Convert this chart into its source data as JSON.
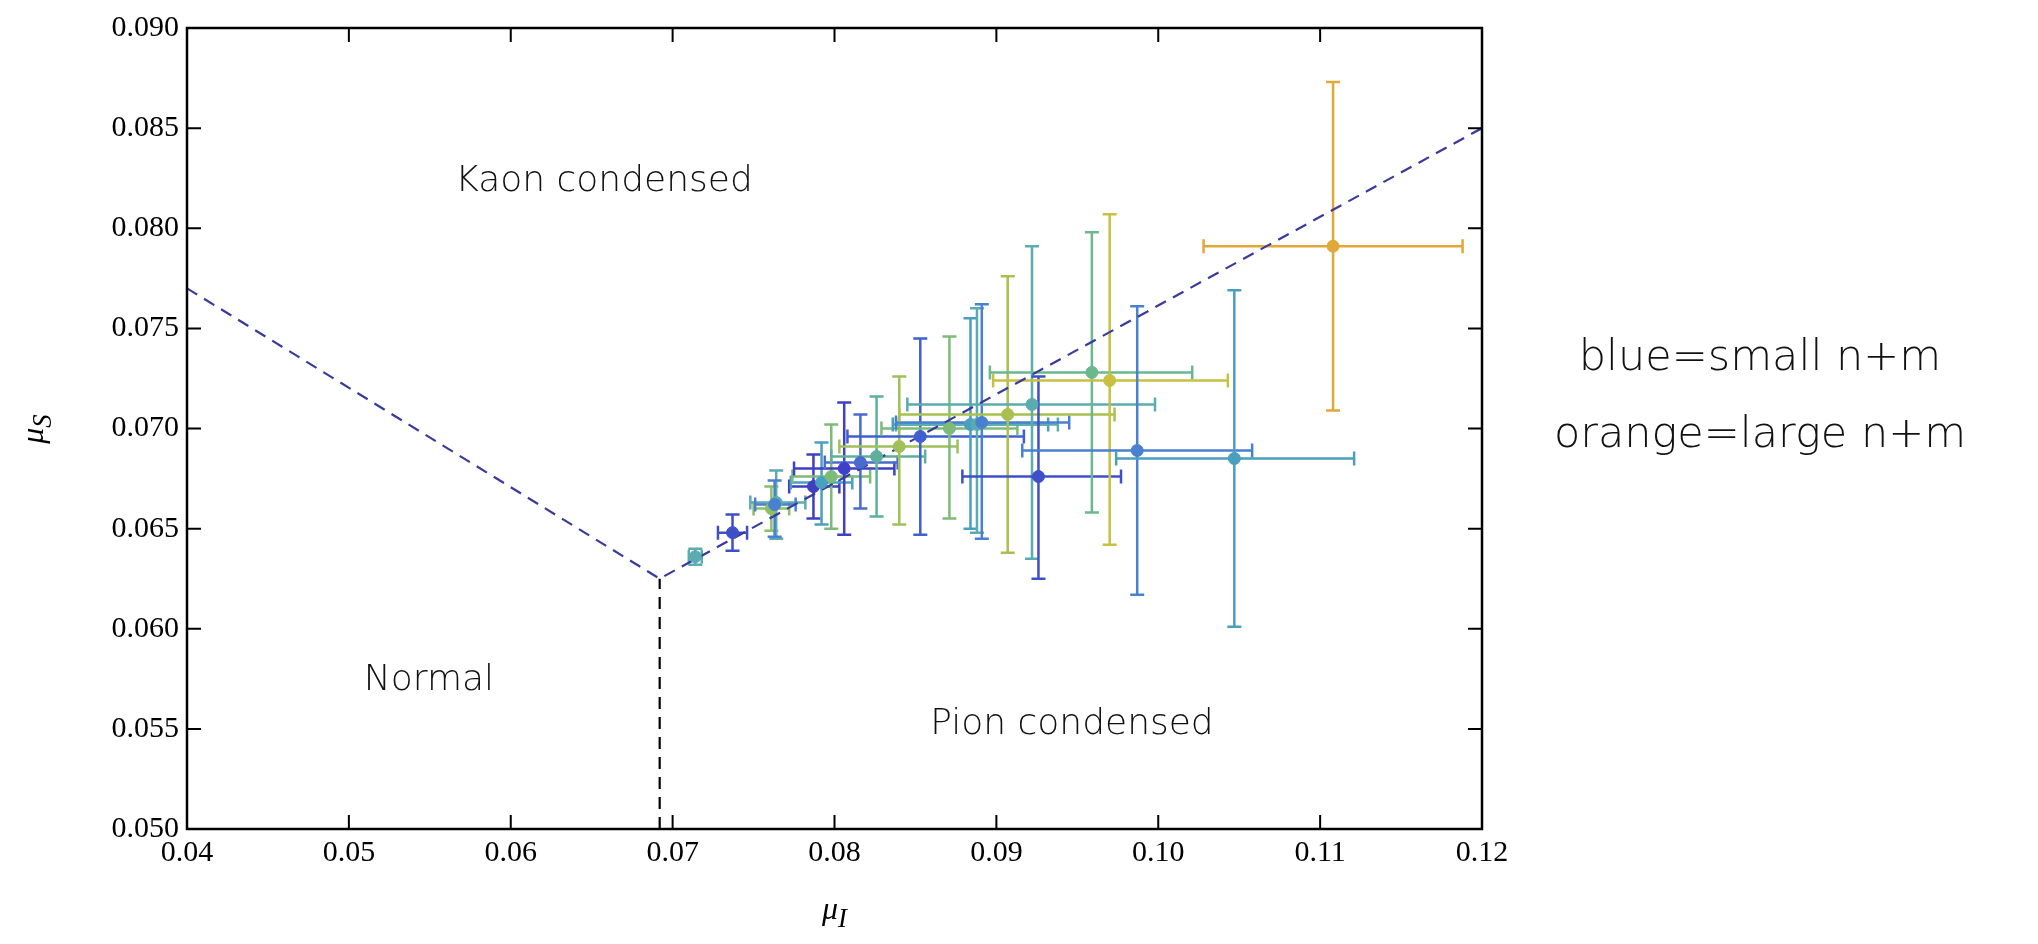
{
  "chart_data": {
    "type": "scatter",
    "xlabel": "μ$_{I}$",
    "ylabel": "μ$_{S}$",
    "xlim": [
      0.04,
      0.12
    ],
    "ylim": [
      0.05,
      0.09
    ],
    "xticks": [
      0.04,
      0.05,
      0.06,
      0.07,
      0.08,
      0.09,
      {
        "value": 0.1,
        "label": "0.10"
      },
      {
        "value": 0.11,
        "label": "0.11"
      },
      {
        "value": 0.12,
        "label": "0.12"
      }
    ],
    "yticks": [
      {
        "value": 0.05,
        "label": "0.050"
      },
      {
        "value": 0.055,
        "label": "0.055"
      },
      {
        "value": 0.06,
        "label": "0.060"
      },
      {
        "value": 0.065,
        "label": "0.065"
      },
      {
        "value": 0.07,
        "label": "0.070"
      },
      {
        "value": 0.075,
        "label": "0.075"
      },
      {
        "value": 0.08,
        "label": "0.080"
      },
      {
        "value": 0.085,
        "label": "0.085"
      },
      {
        "value": 0.09,
        "label": "0.090"
      }
    ],
    "grid": false,
    "legend": false,
    "marker": "circle",
    "series": [
      {
        "x": [
          0.0714,
          0.0737,
          0.0761,
          0.0764,
          0.0763,
          0.0787,
          0.0792,
          0.0798,
          0.0806,
          0.0816,
          0.0826,
          0.084,
          0.0853,
          0.0871,
          0.0884,
          0.0888,
          0.0891,
          0.0907,
          0.0922,
          0.0926,
          0.0959,
          0.097,
          0.0987,
          0.1047,
          0.1108
        ],
        "values": [
          0.0636,
          0.0648,
          0.066,
          0.0663,
          0.0662,
          0.0671,
          0.0673,
          0.0676,
          0.068,
          0.0683,
          0.0686,
          0.0691,
          0.0696,
          0.07,
          0.0702,
          0.0702,
          0.0703,
          0.0707,
          0.0712,
          0.0676,
          0.0728,
          0.0724,
          0.0689,
          0.0685,
          0.0791
        ],
        "colors": [
          "#5aacb0",
          "#3f4fc8",
          "#8cc063",
          "#5aacb0",
          "#4a80d0",
          "#3f3fc0",
          "#4aa0c0",
          "#7cbc78",
          "#3f3fc8",
          "#4a6ad0",
          "#5fb09a",
          "#a0c05a",
          "#3f60d0",
          "#7cbc78",
          "#4a9ec0",
          "#5aacb0",
          "#4a80d0",
          "#a8c050",
          "#5aacb0",
          "#3f4fc8",
          "#6ab88e",
          "#c8c040",
          "#4a80d0",
          "#4a9ec0",
          "#e0a838"
        ],
        "xerrors": [
          [
            0.071,
            0.0718
          ],
          [
            0.0728,
            0.0746
          ],
          [
            0.075,
            0.0772
          ],
          [
            0.0748,
            0.0782
          ],
          [
            0.0751,
            0.0776
          ],
          [
            0.0772,
            0.0803
          ],
          [
            0.0773,
            0.0811
          ],
          [
            0.0774,
            0.0822
          ],
          [
            0.0775,
            0.0837
          ],
          [
            0.0794,
            0.0839
          ],
          [
            0.0798,
            0.0856
          ],
          [
            0.0803,
            0.0876
          ],
          [
            0.0808,
            0.0917
          ],
          [
            0.0829,
            0.0913
          ],
          [
            0.0836,
            0.0932
          ],
          [
            0.0838,
            0.0938
          ],
          [
            0.0838,
            0.0945
          ],
          [
            0.084,
            0.0973
          ],
          [
            0.0845,
            0.0998
          ],
          [
            0.0879,
            0.0977
          ],
          [
            0.0896,
            0.1021
          ],
          [
            0.0898,
            0.1043
          ],
          [
            0.0916,
            0.1058
          ],
          [
            0.0974,
            0.1121
          ],
          [
            0.1028,
            0.1188
          ]
        ],
        "errors": [
          [
            0.0632,
            0.064
          ],
          [
            0.0639,
            0.0657
          ],
          [
            0.0649,
            0.0671
          ],
          [
            0.0645,
            0.0679
          ],
          [
            0.0646,
            0.0674
          ],
          [
            0.0655,
            0.0687
          ],
          [
            0.0652,
            0.0693
          ],
          [
            0.065,
            0.0702
          ],
          [
            0.0647,
            0.0713
          ],
          [
            0.066,
            0.0707
          ],
          [
            0.0656,
            0.0716
          ],
          [
            0.0652,
            0.0726
          ],
          [
            0.0647,
            0.0745
          ],
          [
            0.0655,
            0.0746
          ],
          [
            0.065,
            0.0755
          ],
          [
            0.0648,
            0.076
          ],
          [
            0.0645,
            0.0762
          ],
          [
            0.0638,
            0.0776
          ],
          [
            0.0635,
            0.0791
          ],
          [
            0.0625,
            0.0726
          ],
          [
            0.0658,
            0.0798
          ],
          [
            0.0642,
            0.0807
          ],
          [
            0.0617,
            0.0761
          ],
          [
            0.0601,
            0.0769
          ],
          [
            0.0709,
            0.0873
          ]
        ]
      },
      {
        "type": "line",
        "x": [
          0.04,
          0.0692,
          0.12
        ],
        "values": [
          0.077,
          0.0625,
          0.085
        ],
        "color": "#3a3a9a",
        "line_style": "dashed",
        "marker": "none"
      },
      {
        "type": "line",
        "x": [
          0.0692,
          0.0692
        ],
        "values": [
          0.05,
          0.0625
        ],
        "color": "#000000",
        "line_style": "dashed",
        "marker": "none"
      }
    ],
    "annotations": [
      "Kaon condensed",
      "Normal",
      "Pion condensed",
      "blue=small n+m",
      "orange=large n+m"
    ]
  }
}
